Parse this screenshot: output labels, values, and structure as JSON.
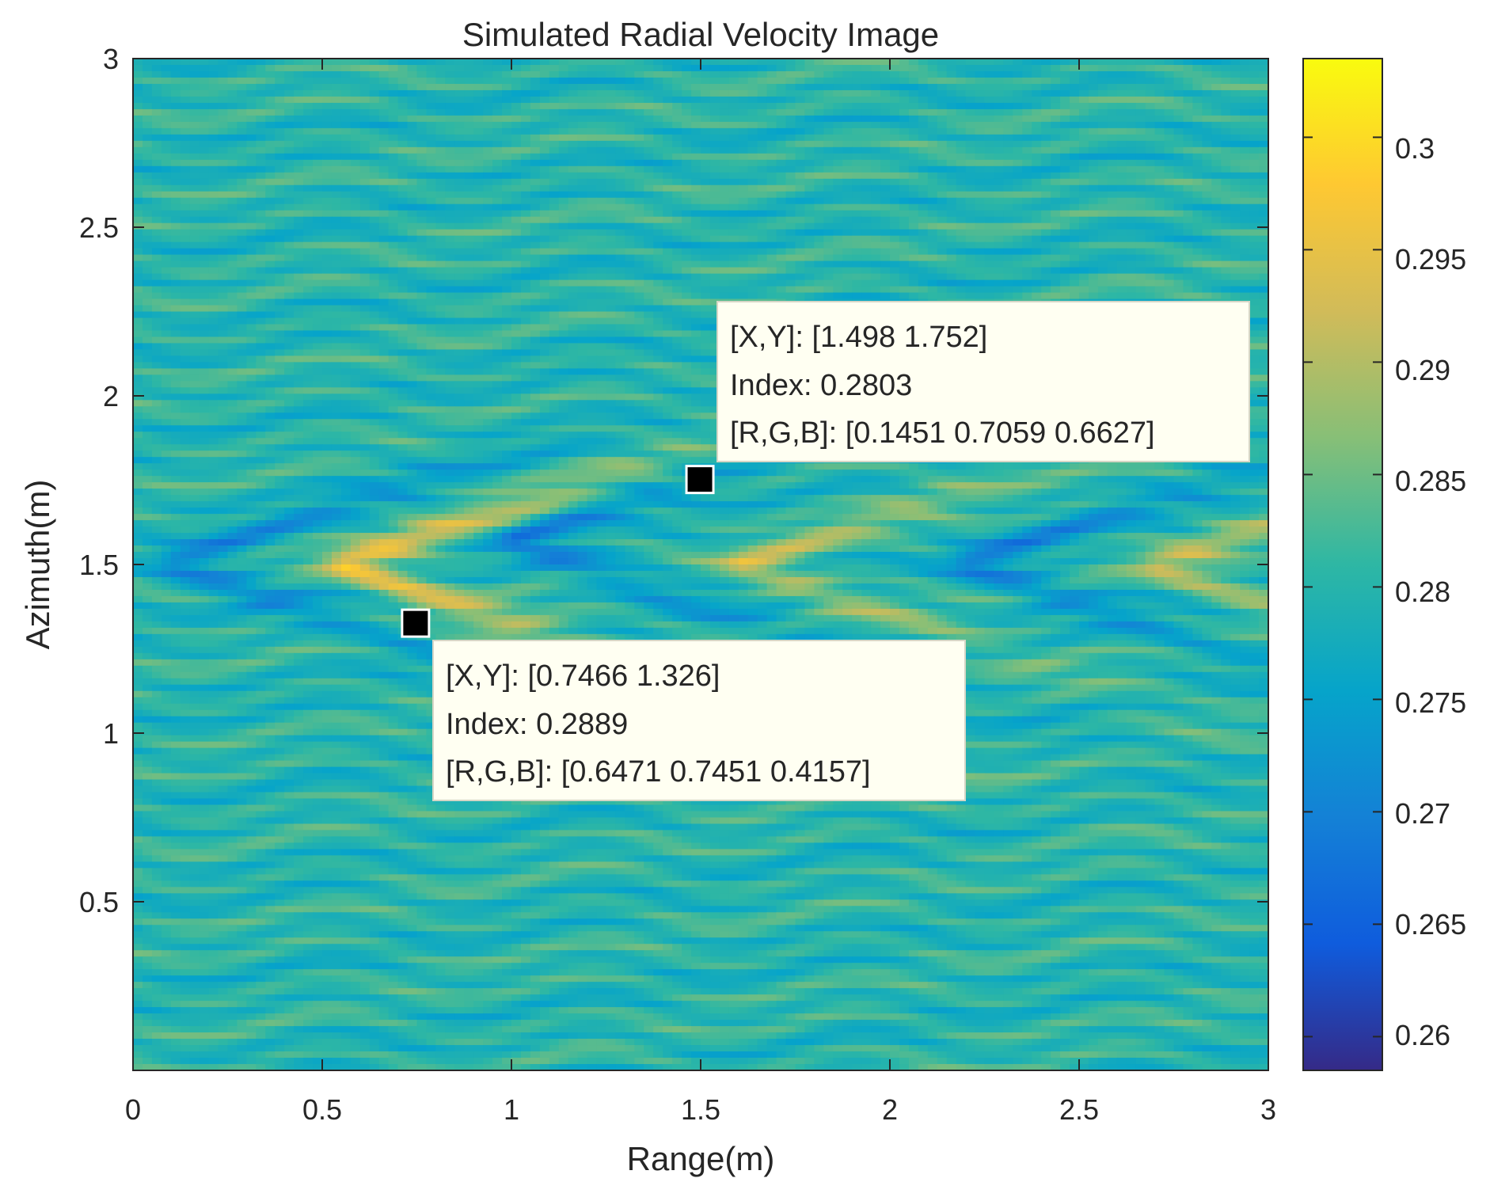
{
  "chart_data": {
    "type": "heatmap",
    "title": "Simulated Radial Velocity Image",
    "xlabel": "Range(m)",
    "ylabel": "Azimuth(m)",
    "xlim": [
      0,
      3
    ],
    "ylim": [
      0,
      3
    ],
    "xticks": [
      0,
      0.5,
      1,
      1.5,
      2,
      2.5,
      3
    ],
    "xtick_labels": [
      "0",
      "0.5",
      "1",
      "1.5",
      "2",
      "2.5",
      "3"
    ],
    "yticks": [
      0.5,
      1,
      1.5,
      2,
      2.5,
      3
    ],
    "ytick_labels": [
      "0.5",
      "1",
      "1.5",
      "2",
      "2.5",
      "3"
    ],
    "colorbar": {
      "colormap": "parula",
      "clim": [
        0.2585,
        0.3035
      ],
      "ticks": [
        0.26,
        0.265,
        0.27,
        0.275,
        0.28,
        0.285,
        0.29,
        0.295,
        0.3
      ],
      "tick_labels": [
        "0.26",
        "0.265",
        "0.27",
        "0.275",
        "0.28",
        "0.285",
        "0.29",
        "0.295",
        "0.3"
      ],
      "colors": [
        "#352a87",
        "#0f5cdd",
        "#1481d6",
        "#06a4ca",
        "#2eb7a4",
        "#87bf77",
        "#d1bb59",
        "#fec832",
        "#f9fb0e"
      ]
    },
    "field": {
      "background_level": 0.28,
      "chevron_apex": [
        {
          "range": 0.1,
          "azimuth": 1.5,
          "sign": "low"
        },
        {
          "range": 0.55,
          "azimuth": 1.5,
          "sign": "high"
        },
        {
          "range": 1.0,
          "azimuth": 1.57,
          "sign": "low"
        },
        {
          "range": 1.6,
          "azimuth": 1.5,
          "sign": "high"
        },
        {
          "range": 2.2,
          "azimuth": 1.5,
          "sign": "low"
        },
        {
          "range": 2.7,
          "azimuth": 1.5,
          "sign": "high"
        }
      ]
    },
    "datatips": [
      {
        "x": 1.498,
        "y": 1.752,
        "line1": "[X,Y]: [1.498 1.752]",
        "line2": "Index: 0.2803",
        "line3": "[R,G,B]: [0.1451 0.7059 0.6627]"
      },
      {
        "x": 0.7466,
        "y": 1.326,
        "line1": "[X,Y]: [0.7466 1.326]",
        "line2": "Index: 0.2889",
        "line3": "[R,G,B]: [0.6471 0.7451 0.4157]"
      }
    ]
  }
}
